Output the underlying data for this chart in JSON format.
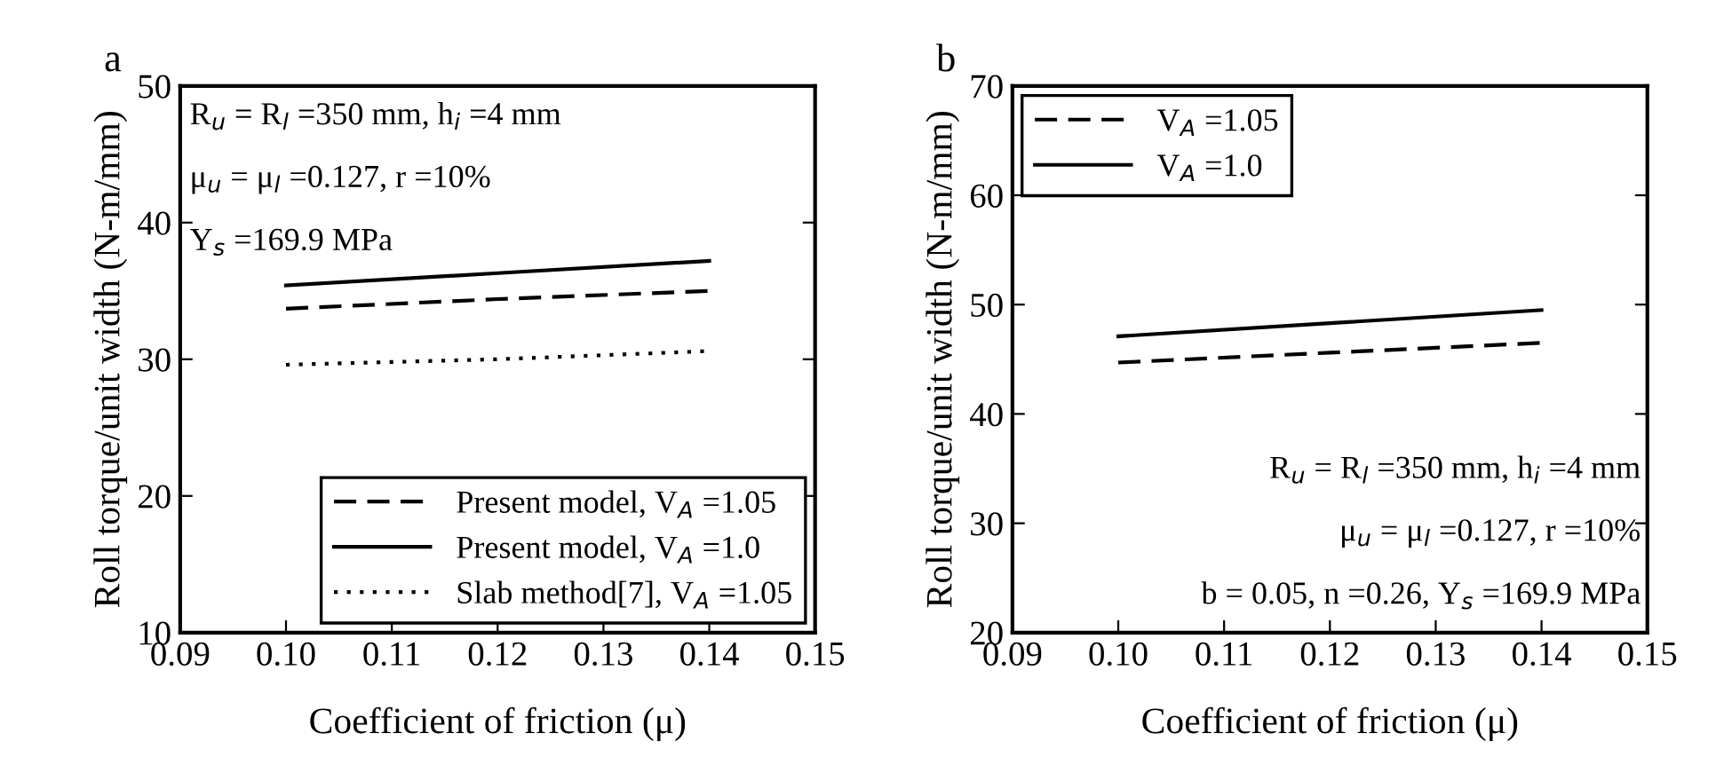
{
  "chart_data": [
    {
      "type": "line",
      "title": "a",
      "xlabel": "Coefficient of friction (μ)",
      "ylabel": "Roll torque/unit width (N-m/mm)",
      "xlim": [
        0.09,
        0.15
      ],
      "xticks": [
        0.09,
        {
          "value": 0.1,
          "label": "0.10"
        },
        0.11,
        0.12,
        0.13,
        0.14,
        0.15
      ],
      "ylim": [
        10,
        50
      ],
      "yticks": [
        10,
        20,
        30,
        40,
        50
      ],
      "grid": false,
      "legend": "bottom right",
      "annotations": [
        "R$_{u}$ = R$_{l}$ =350 mm, h$_{i}$ =4 mm",
        "μ$_{u}$ = μ$_{l}$ =0.127, r =10%",
        "Y$_{s}$ =169.9 MPa"
      ],
      "series": [
        {
          "name": "Present model, V$_{A}$ =1.05",
          "color": "#000000",
          "line_style": "dashed",
          "x": [
            0.1,
            0.12,
            0.14
          ],
          "values": [
            33.7,
            34.4,
            35.0
          ]
        },
        {
          "name": "Present model, V$_{A}$ =1.0",
          "color": "#000000",
          "line_style": "solid",
          "x": [
            0.1,
            0.12,
            0.14
          ],
          "values": [
            35.4,
            36.3,
            37.2
          ]
        },
        {
          "name": "Slab method[7], V$_{A}$ =1.05",
          "color": "#000000",
          "line_style": "dotted",
          "x": [
            0.1,
            0.12,
            0.14
          ],
          "values": [
            29.6,
            30.0,
            30.6
          ]
        }
      ]
    },
    {
      "type": "line",
      "title": "b",
      "xlabel": "Coefficient of friction (μ)",
      "ylabel": "Roll torque/unit width (N-m/mm)",
      "xlim": [
        0.09,
        0.15
      ],
      "xticks": [
        0.09,
        {
          "value": 0.1,
          "label": "0.10"
        },
        0.11,
        0.12,
        0.13,
        0.14,
        0.15
      ],
      "ylim": [
        20,
        70
      ],
      "yticks": [
        20,
        30,
        40,
        50,
        60,
        70
      ],
      "grid": false,
      "legend": "top left",
      "annotations": [
        "R$_{u}$ = R$_{l}$ =350 mm, h$_{i}$ =4 mm",
        "μ$_{u}$ = μ$_{l}$ =0.127, r =10%",
        "b = 0.05, n =0.26, Y$_{s}$ =169.9 MPa"
      ],
      "series": [
        {
          "name": "V$_{A}$ =1.05",
          "color": "#000000",
          "line_style": "dashed",
          "x": [
            0.1,
            0.12,
            0.14
          ],
          "values": [
            44.7,
            45.6,
            46.5
          ]
        },
        {
          "name": "V$_{A}$ =1.0",
          "color": "#000000",
          "line_style": "solid",
          "x": [
            0.1,
            0.12,
            0.14
          ],
          "values": [
            47.1,
            48.3,
            49.5
          ]
        }
      ]
    }
  ]
}
